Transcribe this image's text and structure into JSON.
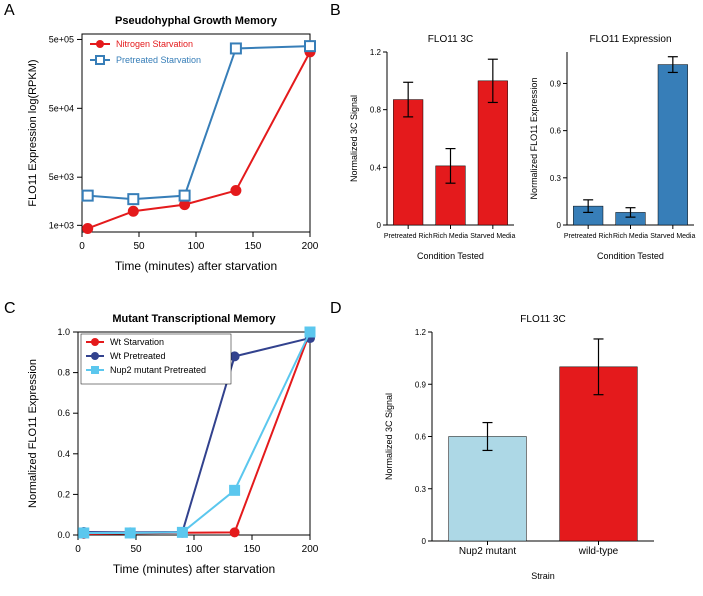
{
  "panelA": {
    "label": "A",
    "title": "Pseudohyphal Growth Memory",
    "xlabel": "Time (minutes) after starvation",
    "ylabel": "FLO11 Expression log(RPKM)",
    "xlim": [
      0,
      200
    ],
    "ylim": [
      800,
      600000
    ],
    "x_ticks": [
      0,
      50,
      100,
      150,
      200
    ],
    "y_ticks": [
      "1e+03",
      "5e+03",
      "5e+04",
      "5e+05"
    ],
    "y_tick_vals": [
      1000,
      5000,
      50000,
      500000
    ],
    "series": [
      {
        "name": "Nitrogen Starvation",
        "color": "#e41a1c",
        "marker": "circle",
        "x": [
          5,
          45,
          90,
          135,
          200
        ],
        "y": [
          900,
          1600,
          2000,
          3200,
          330000
        ]
      },
      {
        "name": "Pretreated Starvation",
        "color": "#377eb8",
        "marker": "square",
        "x": [
          5,
          45,
          90,
          135,
          200
        ],
        "y": [
          2700,
          2400,
          2700,
          370000,
          400000
        ]
      }
    ],
    "legend_pos": "topleft"
  },
  "panelB": {
    "label": "B",
    "left": {
      "title": "FLO11 3C",
      "ylabel": "Normalized 3C Signal",
      "xlabel": "Condition Tested",
      "ylim": [
        0,
        1.2
      ],
      "y_ticks": [
        0,
        0.4,
        0.8,
        1.2
      ],
      "categories": [
        "Pretreated Rich",
        "Rich Media",
        "Starved Media"
      ],
      "values": [
        0.87,
        0.41,
        1.0
      ],
      "errors": [
        0.12,
        0.12,
        0.15
      ],
      "bar_color": "#e41a1c",
      "error_color": "#000000"
    },
    "right": {
      "title": "FLO11 Expression",
      "ylabel": "Normalized FLO11 Expression",
      "xlabel": "Condition Tested",
      "ylim": [
        0,
        1.1
      ],
      "y_ticks": [
        0,
        0.3,
        0.6,
        0.9
      ],
      "categories": [
        "Pretreated Rich",
        "Rich Media",
        "Starved Media"
      ],
      "values": [
        0.12,
        0.08,
        1.02
      ],
      "errors": [
        0.04,
        0.03,
        0.05
      ],
      "bar_color": "#377eb8",
      "error_color": "#000000"
    }
  },
  "panelC": {
    "label": "C",
    "title": "Mutant Transcriptional Memory",
    "xlabel": "Time (minutes) after starvation",
    "ylabel": "Normalized FLO11 Expression",
    "xlim": [
      0,
      200
    ],
    "ylim": [
      0,
      1.0
    ],
    "x_ticks": [
      0,
      50,
      100,
      150,
      200
    ],
    "y_ticks": [
      0.0,
      0.2,
      0.4,
      0.6,
      0.8,
      1.0
    ],
    "series": [
      {
        "name": "Wt Starvation",
        "color": "#e41a1c",
        "marker": "circle",
        "x": [
          5,
          45,
          90,
          135,
          200
        ],
        "y": [
          0.005,
          0.008,
          0.011,
          0.013,
          1.0
        ]
      },
      {
        "name": "Wt Pretreated",
        "color": "#32428e",
        "marker": "circle",
        "x": [
          5,
          45,
          90,
          135,
          200
        ],
        "y": [
          0.015,
          0.013,
          0.015,
          0.88,
          0.97
        ]
      },
      {
        "name": "Nup2 mutant Pretreated",
        "color": "#5bc7ee",
        "marker": "square",
        "x": [
          5,
          45,
          90,
          135,
          200
        ],
        "y": [
          0.01,
          0.01,
          0.013,
          0.22,
          1.0
        ]
      }
    ],
    "legend_pos": "topleft"
  },
  "panelD": {
    "label": "D",
    "title": "FLO11 3C",
    "ylabel": "Normalized 3C Signal",
    "xlabel": "Strain",
    "ylim": [
      0,
      1.2
    ],
    "y_ticks": [
      0,
      0.3,
      0.6,
      0.9,
      1.2
    ],
    "categories": [
      "Nup2 mutant",
      "wild-type"
    ],
    "values": [
      0.6,
      1.0
    ],
    "errors": [
      0.08,
      0.16
    ],
    "bar_colors": [
      "#add8e6",
      "#e41a1c"
    ],
    "error_color": "#000000"
  },
  "style": {
    "axis_color": "#000000",
    "tick_fontsize": 9,
    "label_fontsize": 11,
    "title_fontsize": 11,
    "legend_fontsize": 9
  }
}
